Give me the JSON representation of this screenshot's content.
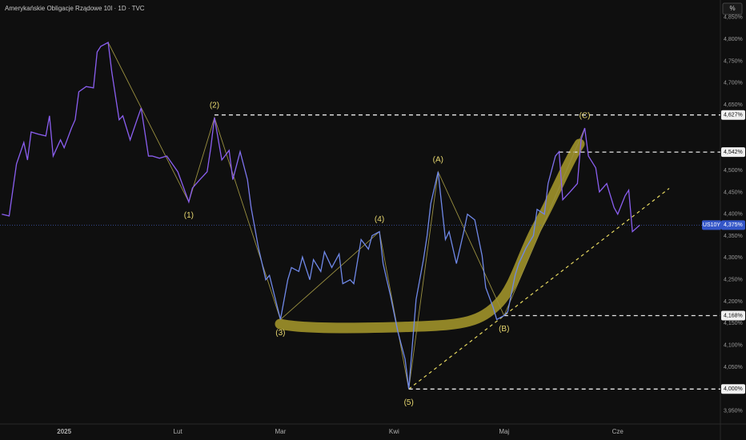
{
  "chart_data": {
    "type": "line",
    "title": "Amerykańskie Obligacje Rządowe 10l · 1D · TVC",
    "unit": "%",
    "x": [
      -17,
      -15,
      -13,
      -11,
      -10,
      -9,
      -7,
      -5,
      -4,
      -3,
      -1,
      0,
      2,
      3,
      4,
      6,
      8,
      9,
      10,
      12,
      13,
      15,
      16,
      18,
      20,
      21,
      23,
      24,
      26,
      28,
      29,
      31,
      34,
      35,
      37,
      39,
      40,
      41,
      43,
      45,
      46,
      48,
      50,
      51,
      53,
      55,
      56,
      59,
      61,
      62,
      64,
      65,
      67,
      68,
      70,
      71,
      73,
      75,
      76,
      78,
      79,
      81,
      83,
      84,
      86,
      87,
      89,
      91,
      93,
      94,
      96,
      98,
      99,
      100,
      102,
      104,
      105,
      107,
      109,
      110,
      112,
      114,
      115,
      117,
      118,
      120,
      121,
      123,
      124,
      126,
      128,
      129,
      131,
      132,
      134,
      135,
      136,
      138,
      140,
      141,
      142,
      143,
      145,
      146,
      148,
      150,
      151,
      153,
      154,
      155,
      157
    ],
    "series": [
      {
        "name": "US10Y",
        "color": "#7c6cf0",
        "values": [
          4.4,
          4.396,
          4.515,
          4.564,
          4.524,
          4.588,
          4.583,
          4.579,
          4.625,
          4.533,
          4.57,
          4.552,
          4.597,
          4.616,
          4.68,
          4.692,
          4.689,
          4.771,
          4.784,
          4.793,
          4.725,
          4.616,
          4.625,
          4.57,
          4.619,
          4.643,
          4.533,
          4.533,
          4.528,
          4.533,
          4.521,
          4.497,
          4.428,
          4.46,
          4.479,
          4.497,
          4.552,
          4.621,
          4.524,
          4.546,
          4.479,
          4.543,
          4.479,
          4.415,
          4.323,
          4.25,
          4.26,
          4.159,
          4.25,
          4.278,
          4.269,
          4.302,
          4.25,
          4.296,
          4.269,
          4.314,
          4.278,
          4.309,
          4.241,
          4.25,
          4.241,
          4.342,
          4.32,
          4.351,
          4.36,
          4.287,
          4.214,
          4.132,
          4.068,
          4.0,
          4.205,
          4.296,
          4.351,
          4.424,
          4.497,
          4.342,
          4.36,
          4.287,
          4.36,
          4.4,
          4.387,
          4.305,
          4.232,
          4.187,
          4.159,
          4.168,
          4.177,
          4.26,
          4.287,
          4.323,
          4.351,
          4.411,
          4.4,
          4.47,
          4.533,
          4.543,
          4.433,
          4.451,
          4.47,
          4.57,
          4.597,
          4.533,
          4.506,
          4.451,
          4.47,
          4.415,
          4.4,
          4.442,
          4.455,
          4.36,
          4.375
        ]
      }
    ],
    "xlim": [
      -17.5,
      179
    ],
    "xticks": [
      {
        "value": 0,
        "label": "2025"
      },
      {
        "value": 31,
        "label": "Lut"
      },
      {
        "value": 59,
        "label": "Mar"
      },
      {
        "value": 90,
        "label": "Kwi"
      },
      {
        "value": 120,
        "label": "Maj"
      },
      {
        "value": 151,
        "label": "Cze"
      }
    ],
    "ylim": [
      3.92,
      4.89
    ],
    "yticks": [
      {
        "value": 3.95,
        "label": "3,950%"
      },
      {
        "value": 4.05,
        "label": "4,050%"
      },
      {
        "value": 4.1,
        "label": "4,100%"
      },
      {
        "value": 4.15,
        "label": "4,150%"
      },
      {
        "value": 4.2,
        "label": "4,200%"
      },
      {
        "value": 4.25,
        "label": "4,250%"
      },
      {
        "value": 4.3,
        "label": "4,300%"
      },
      {
        "value": 4.35,
        "label": "4,350%"
      },
      {
        "value": 4.4,
        "label": "4,400%"
      },
      {
        "value": 4.45,
        "label": "4,450%"
      },
      {
        "value": 4.5,
        "label": "4,500%"
      },
      {
        "value": 4.65,
        "label": "4,650%"
      },
      {
        "value": 4.7,
        "label": "4,700%"
      },
      {
        "value": 4.75,
        "label": "4,750%"
      },
      {
        "value": 4.8,
        "label": "4,800%"
      },
      {
        "value": 4.85,
        "label": "4,850%"
      }
    ],
    "grid": false,
    "levels": [
      {
        "value": 4.627,
        "label": "4,627%"
      },
      {
        "value": 4.542,
        "label": "4,542%"
      },
      {
        "value": 4.168,
        "label": "4,168%"
      },
      {
        "value": 4.0,
        "label": "4,000%"
      }
    ],
    "last_value": {
      "value": 4.375,
      "label": "4,375%"
    },
    "annotations": [
      "(1)",
      "(2)",
      "(3)",
      "(4)",
      "(5)",
      "(A)",
      "(B)",
      "(C)"
    ]
  }
}
